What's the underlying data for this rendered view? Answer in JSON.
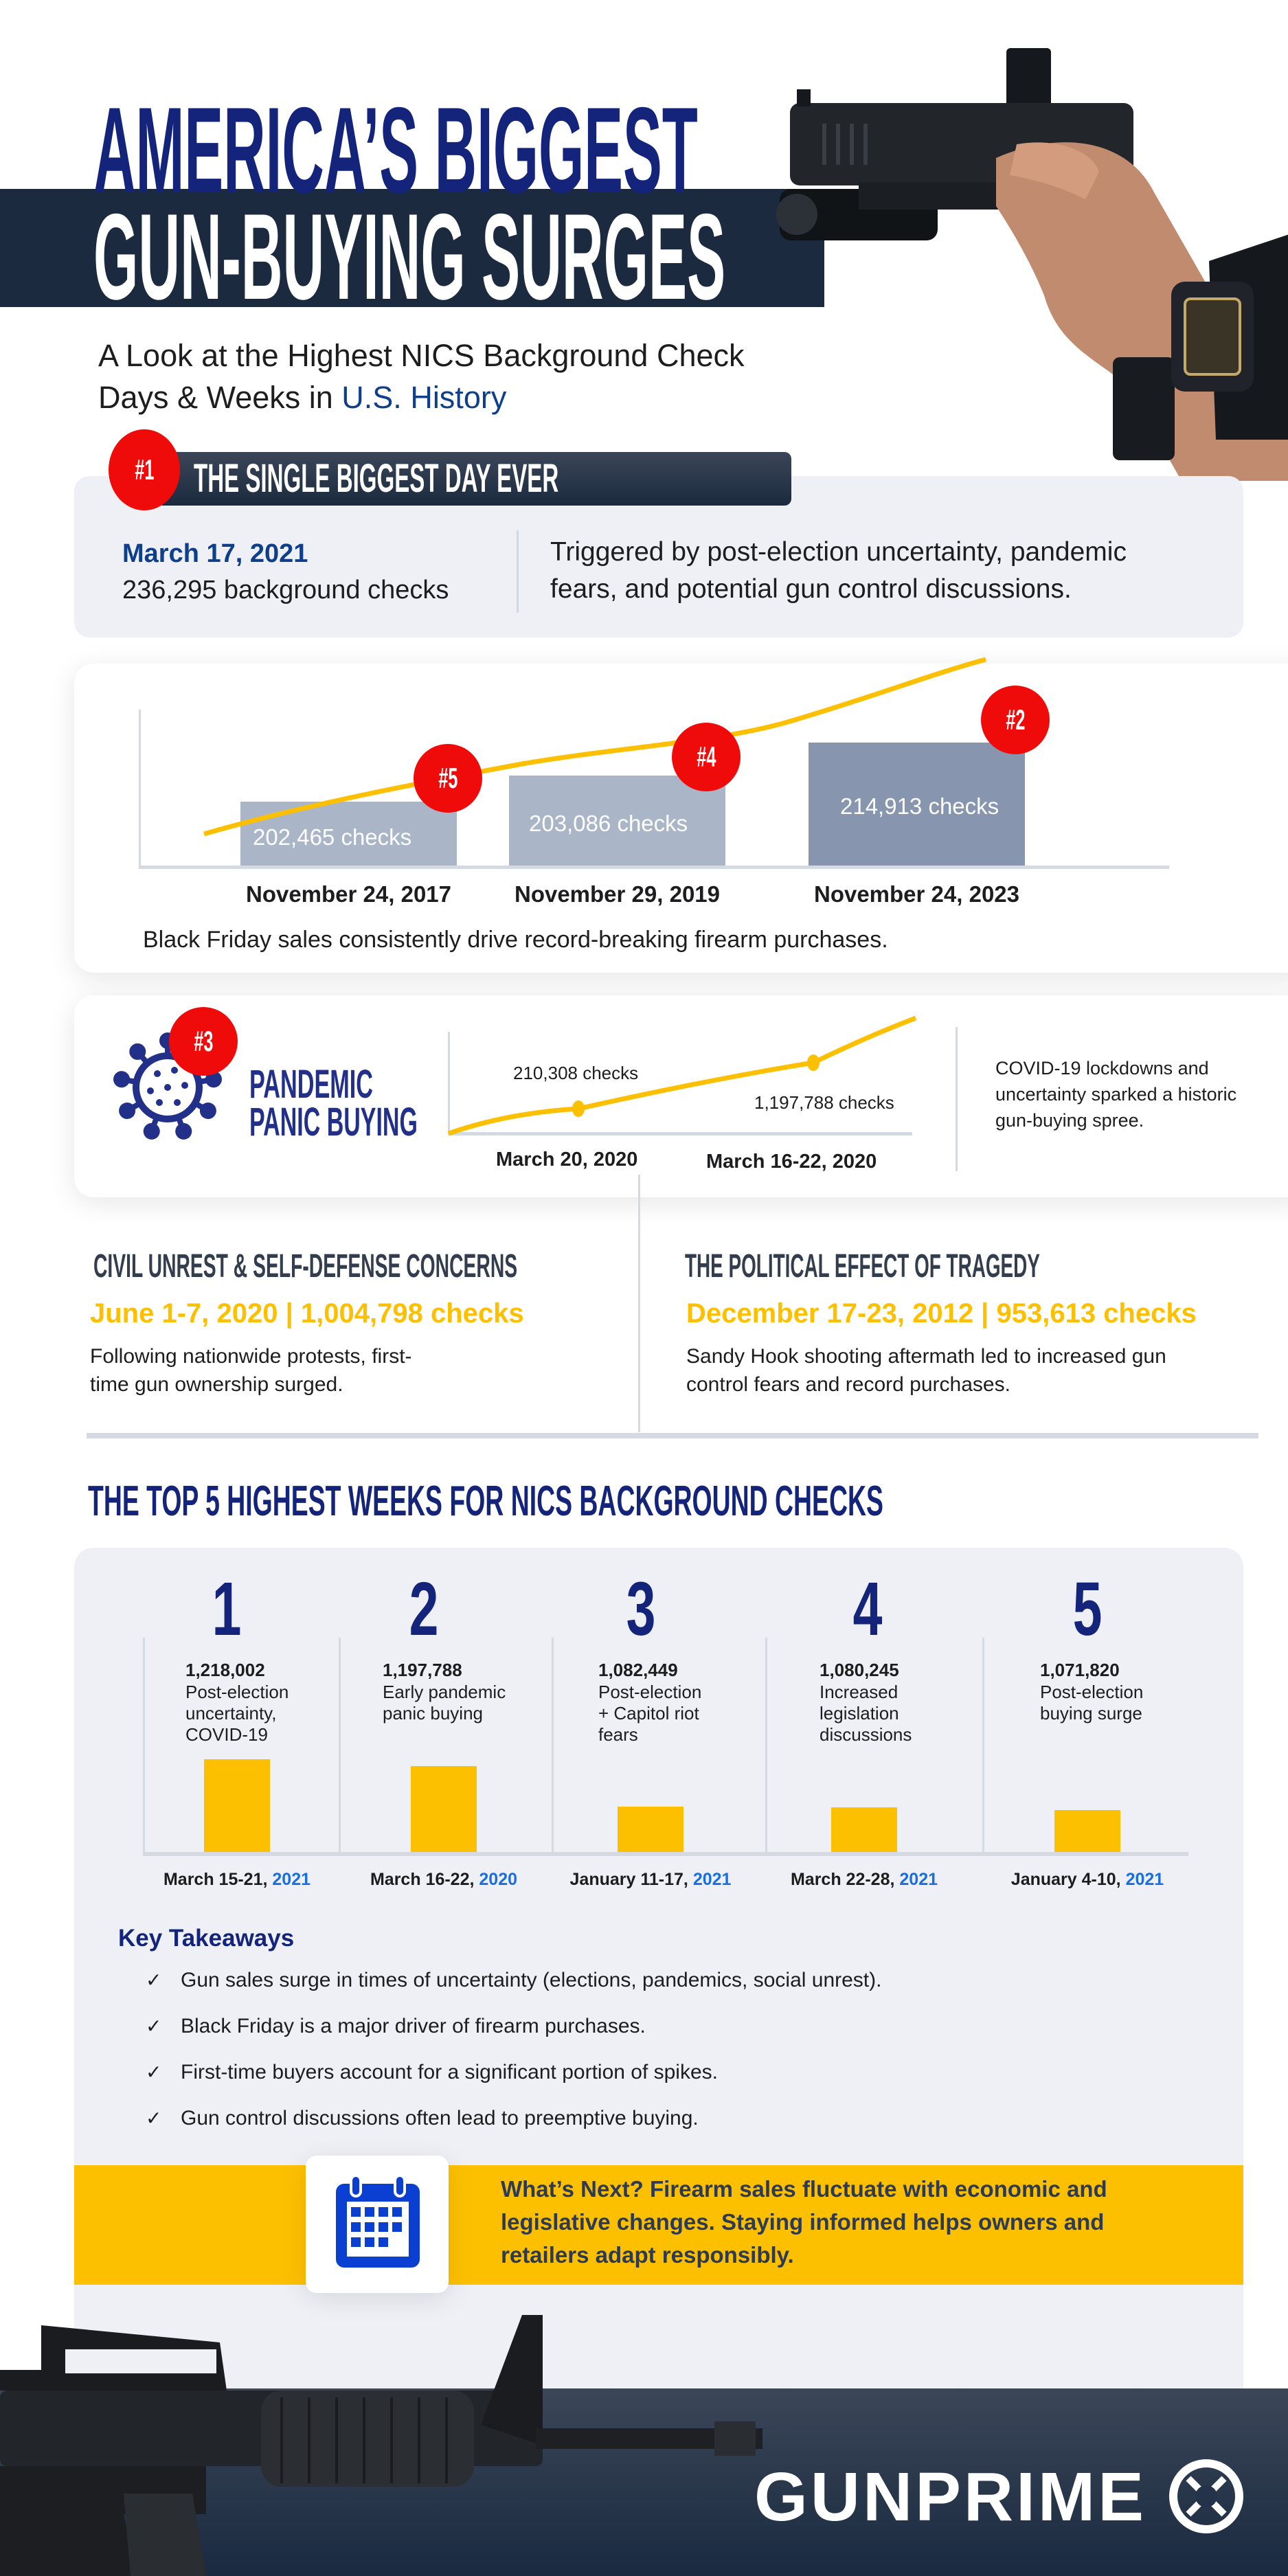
{
  "header": {
    "title_line1": "AMERICA’S BIGGEST",
    "title_line2": "GUN-BUYING SURGES",
    "subtitle_line1": "A Look at the Highest NICS Background Check",
    "subtitle_line2_plain": "Days & Weeks in ",
    "subtitle_line2_highlight": "U.S. History"
  },
  "biggest_day": {
    "rank": "#1",
    "heading": "THE SINGLE BIGGEST DAY EVER",
    "date": "March 17, 2021",
    "checks": "236,295 background checks",
    "description_line1": "Triggered by post-election uncertainty, pandemic",
    "description_line2": "fears, and potential gun control discussions."
  },
  "black_friday": {
    "bars": [
      {
        "rank": "#5",
        "date": "November 24, 2017",
        "value": 202465,
        "label": "202,465  checks"
      },
      {
        "rank": "#4",
        "date": "November 29, 2019",
        "value": 203086,
        "label": "203,086 checks"
      },
      {
        "rank": "#2",
        "date": "November 24, 2023",
        "value": 214913,
        "label": "214,913 checks"
      }
    ],
    "caption": "Black Friday sales consistently drive record-breaking firearm purchases."
  },
  "pandemic": {
    "rank": "#3",
    "title_line1": "PANDEMIC",
    "title_line2": "PANIC BUYING",
    "points": [
      {
        "date": "March 20, 2020",
        "label": "210,308 checks"
      },
      {
        "date": "March 16-22, 2020",
        "label": "1,197,788 checks"
      }
    ],
    "description_line1": "COVID-19 lockdowns and",
    "description_line2": "uncertainty sparked a historic",
    "description_line3": "gun-buying spree."
  },
  "columns": [
    {
      "heading": "CIVIL UNREST & SELF-DEFENSE CONCERNS",
      "highlight": "June 1-7, 2020 | 1,004,798 checks",
      "body_line1": "Following nationwide protests, first-",
      "body_line2": "time gun ownership surged."
    },
    {
      "heading": "THE POLITICAL EFFECT OF TRAGEDY",
      "highlight": "December 17-23, 2012 | 953,613 checks",
      "body_line1": "Sandy Hook shooting aftermath led to increased gun",
      "body_line2": "control fears and record purchases."
    }
  ],
  "top5": {
    "heading": "THE TOP 5 HIGHEST WEEKS FOR NICS BACKGROUND CHECKS",
    "weeks": [
      {
        "rank": "1",
        "value": 1218002,
        "value_label": "1,218,002",
        "desc": [
          "Post-election",
          "uncertainty,",
          "COVID-19"
        ],
        "date": "March 15-21, ",
        "year": "2021"
      },
      {
        "rank": "2",
        "value": 1197788,
        "value_label": "1,197,788",
        "desc": [
          "Early pandemic",
          "panic buying"
        ],
        "date": "March 16-22, ",
        "year": "2020"
      },
      {
        "rank": "3",
        "value": 1082449,
        "value_label": "1,082,449",
        "desc": [
          "Post-election",
          "+ Capitol riot",
          "fears"
        ],
        "date": "January 11-17, ",
        "year": "2021"
      },
      {
        "rank": "4",
        "value": 1080245,
        "value_label": "1,080,245",
        "desc": [
          "Increased",
          "legislation",
          "discussions"
        ],
        "date": "March 22-28, ",
        "year": "2021"
      },
      {
        "rank": "5",
        "value": 1071820,
        "value_label": "1,071,820",
        "desc": [
          "Post-election",
          "buying surge"
        ],
        "date": "January 4-10, ",
        "year": "2021"
      }
    ]
  },
  "takeaways": {
    "heading": "Key Takeaways",
    "check_glyph": "✓",
    "items": [
      "Gun sales surge in times of uncertainty (elections, pandemics, social unrest).",
      "Black Friday is a major driver of firearm purchases.",
      "First-time buyers account for a significant portion of spikes.",
      "Gun control discussions often lead to preemptive buying."
    ]
  },
  "whats_next": {
    "line1": "What’s Next? Firearm sales fluctuate with economic and",
    "line2": "legislative changes. Staying informed helps owners and",
    "line3": "retailers adapt responsibly."
  },
  "footer": {
    "logo_text": "GUNPRIME"
  },
  "colors": {
    "navy": "#13247a",
    "dark_band": "#1b2a3e",
    "badge_red": "#f00b0b",
    "yellow": "#fdc000",
    "panel_gray": "#eef0f5",
    "link_blue": "#1a6fe0"
  }
}
